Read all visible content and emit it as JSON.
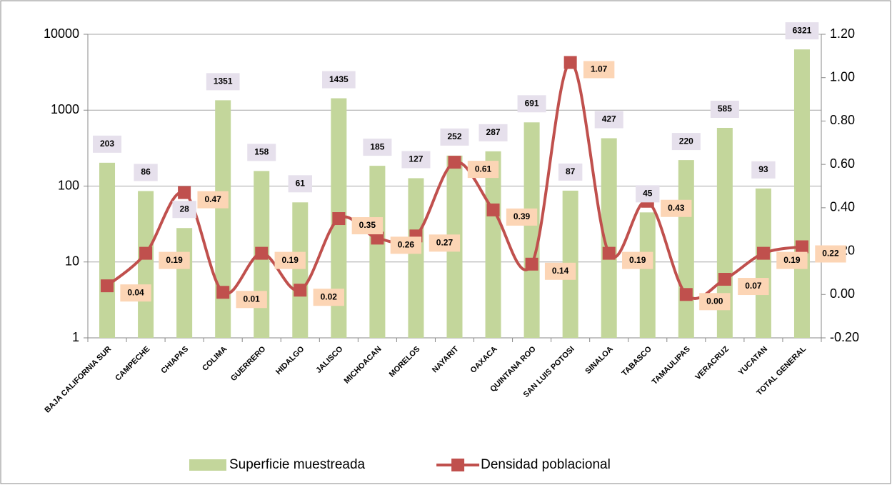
{
  "chart_data": {
    "type": "bar",
    "categories": [
      "BAJA CALIFORNIA SUR",
      "CAMPECHE",
      "CHIAPAS",
      "COLIMA",
      "GUERRERO",
      "HIDALGO",
      "JALISCO",
      "MICHOACAN",
      "MORELOS",
      "NAYARIT",
      "OAXACA",
      "QUINTANA ROO",
      "SAN LUIS POTOSI",
      "SINALOA",
      "TABASCO",
      "TAMAULIPAS",
      "VERACRUZ",
      "YUCATAN",
      "TOTAL GENERAL"
    ],
    "series": [
      {
        "name": "Superficie muestreada",
        "type": "bar",
        "color": "#c3d69b",
        "label_color": "#e6e0ec",
        "values": [
          203,
          86,
          28,
          1351,
          158,
          61,
          1435,
          185,
          127,
          252,
          287,
          691,
          87,
          427,
          45,
          220,
          585,
          93,
          6321
        ]
      },
      {
        "name": "Densidad poblacional",
        "type": "line",
        "axis": "y2",
        "color": "#c0504d",
        "label_color": "#fcd5b5",
        "values": [
          0.04,
          0.19,
          0.47,
          0.01,
          0.19,
          0.02,
          0.35,
          0.26,
          0.27,
          0.61,
          0.39,
          0.14,
          1.07,
          0.19,
          0.43,
          0.0,
          0.07,
          0.19,
          0.22
        ],
        "value_labels": [
          "0.04",
          "0.19",
          "0.47",
          "0.01",
          "0.19",
          "0.02",
          "0.35",
          "0.26",
          "0.27",
          "0.61",
          "0.39",
          "0.14",
          "1.07",
          "0.19",
          "0.43",
          "0.00",
          "0.07",
          "0.19",
          "0.22"
        ]
      }
    ],
    "ylim": [
      1,
      10000
    ],
    "yticks": [
      1,
      10,
      100,
      1000,
      10000
    ],
    "log_y": true,
    "y2lim": [
      -0.2,
      1.2
    ],
    "y2ticks": [
      {
        "value": -0.2,
        "label": "-0.20"
      },
      {
        "value": 0,
        "label": "0.00"
      },
      {
        "value": 0.2,
        "label": "0.20"
      },
      {
        "value": 0.4,
        "label": "0.40"
      },
      {
        "value": 0.6,
        "label": "0.60"
      },
      {
        "value": 0.8,
        "label": "0.80"
      },
      {
        "value": 1.0,
        "label": "1.00"
      },
      {
        "value": 1.2,
        "label": "1.20"
      }
    ],
    "grid": true,
    "legend": "bottom"
  }
}
